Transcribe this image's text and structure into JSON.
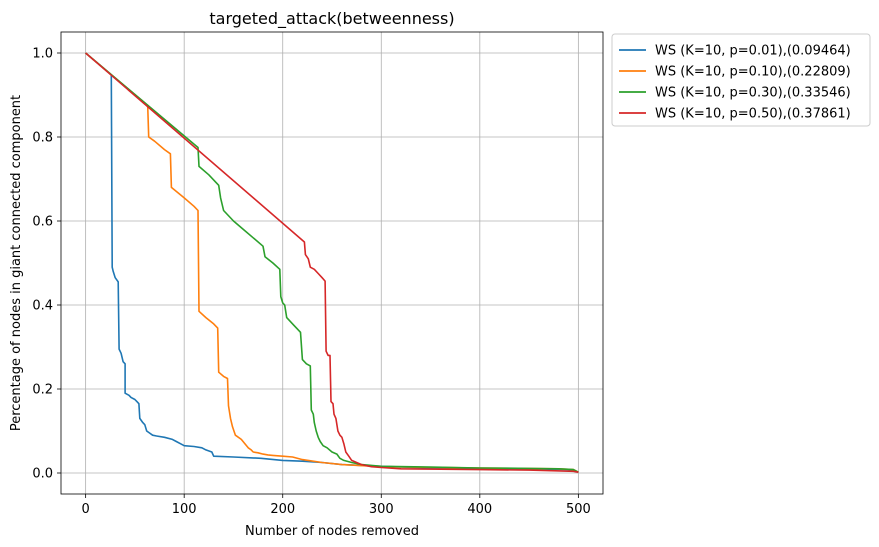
{
  "chart_data": {
    "type": "line",
    "title": "targeted_attack(betweenness)",
    "xlabel": "Number of nodes removed",
    "ylabel": "Percentage of nodes in giant connected component",
    "xlim": [
      -25,
      525
    ],
    "ylim": [
      -0.05,
      1.05
    ],
    "xticks": [
      0,
      100,
      200,
      300,
      400,
      500
    ],
    "xtick_labels": [
      "0",
      "100",
      "200",
      "300",
      "400",
      "500"
    ],
    "yticks": [
      0.0,
      0.2,
      0.4,
      0.6,
      0.8,
      1.0
    ],
    "ytick_labels": [
      "0.0",
      "0.2",
      "0.4",
      "0.6",
      "0.8",
      "1.0"
    ],
    "grid": true,
    "legend_position": "outside-upper-right",
    "series": [
      {
        "name": "WS (K=10, p=0.01),(0.09464)",
        "color": "#1f77b4",
        "points": [
          [
            0,
            1.0
          ],
          [
            26,
            0.948
          ],
          [
            27,
            0.49
          ],
          [
            28,
            0.48
          ],
          [
            30,
            0.465
          ],
          [
            33,
            0.455
          ],
          [
            34,
            0.295
          ],
          [
            36,
            0.285
          ],
          [
            38,
            0.265
          ],
          [
            40,
            0.26
          ],
          [
            40,
            0.19
          ],
          [
            44,
            0.185
          ],
          [
            46,
            0.18
          ],
          [
            50,
            0.175
          ],
          [
            52,
            0.17
          ],
          [
            54,
            0.165
          ],
          [
            55,
            0.13
          ],
          [
            58,
            0.12
          ],
          [
            60,
            0.115
          ],
          [
            62,
            0.1
          ],
          [
            65,
            0.095
          ],
          [
            68,
            0.09
          ],
          [
            72,
            0.088
          ],
          [
            80,
            0.085
          ],
          [
            88,
            0.08
          ],
          [
            92,
            0.075
          ],
          [
            96,
            0.07
          ],
          [
            100,
            0.065
          ],
          [
            110,
            0.063
          ],
          [
            118,
            0.06
          ],
          [
            122,
            0.055
          ],
          [
            128,
            0.05
          ],
          [
            130,
            0.04
          ],
          [
            150,
            0.038
          ],
          [
            178,
            0.035
          ],
          [
            200,
            0.03
          ],
          [
            220,
            0.028
          ],
          [
            240,
            0.025
          ],
          [
            260,
            0.02
          ],
          [
            280,
            0.018
          ],
          [
            300,
            0.016
          ],
          [
            350,
            0.012
          ],
          [
            400,
            0.01
          ],
          [
            450,
            0.01
          ],
          [
            490,
            0.008
          ],
          [
            500,
            0.002
          ]
        ]
      },
      {
        "name": "WS (K=10, p=0.10),(0.22809)",
        "color": "#ff7f0e",
        "points": [
          [
            0,
            1.0
          ],
          [
            63,
            0.875
          ],
          [
            64,
            0.8
          ],
          [
            70,
            0.79
          ],
          [
            80,
            0.77
          ],
          [
            86,
            0.76
          ],
          [
            87,
            0.68
          ],
          [
            100,
            0.655
          ],
          [
            110,
            0.635
          ],
          [
            114,
            0.625
          ],
          [
            115,
            0.385
          ],
          [
            122,
            0.37
          ],
          [
            130,
            0.355
          ],
          [
            134,
            0.345
          ],
          [
            135,
            0.24
          ],
          [
            140,
            0.23
          ],
          [
            144,
            0.225
          ],
          [
            145,
            0.16
          ],
          [
            147,
            0.13
          ],
          [
            149,
            0.11
          ],
          [
            152,
            0.09
          ],
          [
            158,
            0.08
          ],
          [
            165,
            0.06
          ],
          [
            168,
            0.055
          ],
          [
            170,
            0.05
          ],
          [
            175,
            0.048
          ],
          [
            180,
            0.045
          ],
          [
            185,
            0.043
          ],
          [
            190,
            0.042
          ],
          [
            200,
            0.04
          ],
          [
            210,
            0.038
          ],
          [
            220,
            0.032
          ],
          [
            240,
            0.025
          ],
          [
            260,
            0.02
          ],
          [
            300,
            0.015
          ],
          [
            400,
            0.012
          ],
          [
            480,
            0.01
          ],
          [
            495,
            0.008
          ],
          [
            500,
            0.002
          ]
        ]
      },
      {
        "name": "WS (K=10, p=0.30),(0.33546)",
        "color": "#2ca02c",
        "points": [
          [
            0,
            1.0
          ],
          [
            114,
            0.775
          ],
          [
            115,
            0.73
          ],
          [
            125,
            0.71
          ],
          [
            135,
            0.685
          ],
          [
            137,
            0.655
          ],
          [
            140,
            0.625
          ],
          [
            150,
            0.6
          ],
          [
            160,
            0.58
          ],
          [
            170,
            0.56
          ],
          [
            180,
            0.54
          ],
          [
            182,
            0.515
          ],
          [
            190,
            0.5
          ],
          [
            197,
            0.485
          ],
          [
            198,
            0.42
          ],
          [
            200,
            0.405
          ],
          [
            202,
            0.4
          ],
          [
            204,
            0.37
          ],
          [
            210,
            0.355
          ],
          [
            214,
            0.345
          ],
          [
            218,
            0.335
          ],
          [
            220,
            0.27
          ],
          [
            224,
            0.26
          ],
          [
            228,
            0.255
          ],
          [
            229,
            0.15
          ],
          [
            231,
            0.14
          ],
          [
            232,
            0.12
          ],
          [
            234,
            0.1
          ],
          [
            236,
            0.085
          ],
          [
            238,
            0.075
          ],
          [
            241,
            0.065
          ],
          [
            245,
            0.06
          ],
          [
            250,
            0.05
          ],
          [
            255,
            0.045
          ],
          [
            258,
            0.035
          ],
          [
            262,
            0.03
          ],
          [
            270,
            0.025
          ],
          [
            280,
            0.02
          ],
          [
            300,
            0.016
          ],
          [
            350,
            0.014
          ],
          [
            400,
            0.012
          ],
          [
            450,
            0.011
          ],
          [
            480,
            0.01
          ],
          [
            495,
            0.008
          ],
          [
            500,
            0.002
          ]
        ]
      },
      {
        "name": "WS (K=10, p=0.50),(0.37861)",
        "color": "#d62728",
        "points": [
          [
            0,
            1.0
          ],
          [
            222,
            0.55
          ],
          [
            223,
            0.52
          ],
          [
            226,
            0.51
          ],
          [
            228,
            0.49
          ],
          [
            232,
            0.485
          ],
          [
            236,
            0.475
          ],
          [
            240,
            0.465
          ],
          [
            243,
            0.457
          ],
          [
            244,
            0.29
          ],
          [
            246,
            0.28
          ],
          [
            248,
            0.28
          ],
          [
            249,
            0.17
          ],
          [
            251,
            0.165
          ],
          [
            252,
            0.14
          ],
          [
            254,
            0.13
          ],
          [
            256,
            0.1
          ],
          [
            258,
            0.09
          ],
          [
            260,
            0.085
          ],
          [
            262,
            0.07
          ],
          [
            264,
            0.05
          ],
          [
            267,
            0.04
          ],
          [
            270,
            0.03
          ],
          [
            275,
            0.025
          ],
          [
            280,
            0.02
          ],
          [
            290,
            0.015
          ],
          [
            300,
            0.013
          ],
          [
            320,
            0.01
          ],
          [
            400,
            0.008
          ],
          [
            450,
            0.007
          ],
          [
            495,
            0.004
          ],
          [
            500,
            0.002
          ]
        ]
      }
    ]
  }
}
